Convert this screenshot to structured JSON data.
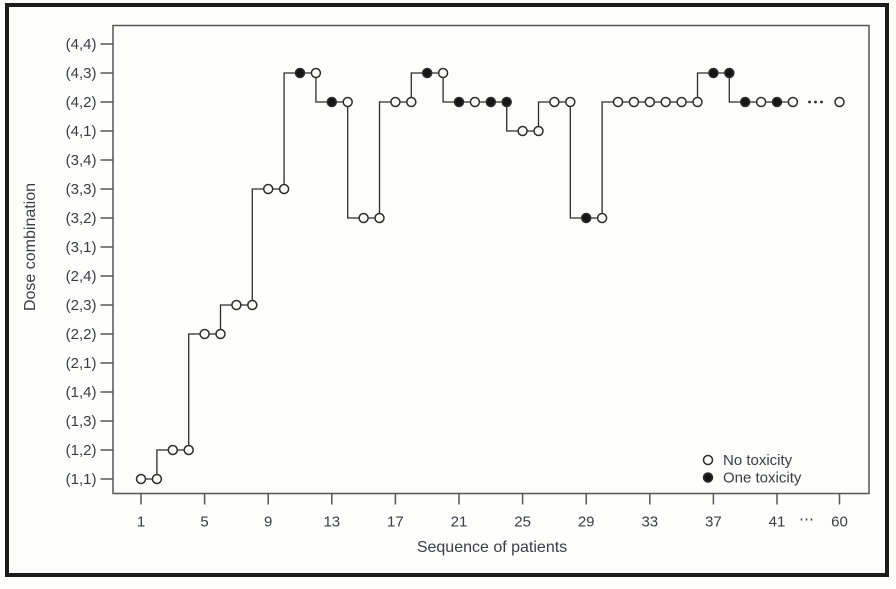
{
  "figure": {
    "description": "Dose-finding trial step plot of assigned dose combination per patient",
    "line_color": "#2d2d2d",
    "border_color": "#555555",
    "text_color": "#3a3d44",
    "background": "#fdfdfc"
  },
  "chart_data": {
    "type": "step-scatter",
    "title": "",
    "xlabel": "Sequence of patients",
    "ylabel": "Dose combination",
    "y_categories": [
      "(1,1)",
      "(1,2)",
      "(1,3)",
      "(1,4)",
      "(2,1)",
      "(2,2)",
      "(2,3)",
      "(2,4)",
      "(3,1)",
      "(3,2)",
      "(3,3)",
      "(3,4)",
      "(4,1)",
      "(4,2)",
      "(4,3)",
      "(4,4)"
    ],
    "x_ticks": [
      1,
      5,
      9,
      13,
      17,
      21,
      25,
      29,
      33,
      37,
      41
    ],
    "x_break_label": "⋯",
    "x_final_tick": 60,
    "legend": [
      {
        "label": "No toxicity",
        "toxicity": false
      },
      {
        "label": "One toxicity",
        "toxicity": true
      }
    ],
    "series": [
      {
        "patient": 1,
        "dose": "(1,1)",
        "toxicity": false
      },
      {
        "patient": 2,
        "dose": "(1,1)",
        "toxicity": false
      },
      {
        "patient": 3,
        "dose": "(1,2)",
        "toxicity": false
      },
      {
        "patient": 4,
        "dose": "(1,2)",
        "toxicity": false
      },
      {
        "patient": 5,
        "dose": "(2,2)",
        "toxicity": false
      },
      {
        "patient": 6,
        "dose": "(2,2)",
        "toxicity": false
      },
      {
        "patient": 7,
        "dose": "(2,3)",
        "toxicity": false
      },
      {
        "patient": 8,
        "dose": "(2,3)",
        "toxicity": false
      },
      {
        "patient": 9,
        "dose": "(3,3)",
        "toxicity": false
      },
      {
        "patient": 10,
        "dose": "(3,3)",
        "toxicity": false
      },
      {
        "patient": 11,
        "dose": "(4,3)",
        "toxicity": true
      },
      {
        "patient": 12,
        "dose": "(4,3)",
        "toxicity": false
      },
      {
        "patient": 13,
        "dose": "(4,2)",
        "toxicity": true
      },
      {
        "patient": 14,
        "dose": "(4,2)",
        "toxicity": false
      },
      {
        "patient": 15,
        "dose": "(3,2)",
        "toxicity": false
      },
      {
        "patient": 16,
        "dose": "(3,2)",
        "toxicity": false
      },
      {
        "patient": 17,
        "dose": "(4,2)",
        "toxicity": false
      },
      {
        "patient": 18,
        "dose": "(4,2)",
        "toxicity": false
      },
      {
        "patient": 19,
        "dose": "(4,3)",
        "toxicity": true
      },
      {
        "patient": 20,
        "dose": "(4,3)",
        "toxicity": false
      },
      {
        "patient": 21,
        "dose": "(4,2)",
        "toxicity": true
      },
      {
        "patient": 22,
        "dose": "(4,2)",
        "toxicity": false
      },
      {
        "patient": 23,
        "dose": "(4,2)",
        "toxicity": true
      },
      {
        "patient": 24,
        "dose": "(4,2)",
        "toxicity": true
      },
      {
        "patient": 25,
        "dose": "(4,1)",
        "toxicity": false
      },
      {
        "patient": 26,
        "dose": "(4,1)",
        "toxicity": false
      },
      {
        "patient": 27,
        "dose": "(4,2)",
        "toxicity": false
      },
      {
        "patient": 28,
        "dose": "(4,2)",
        "toxicity": false
      },
      {
        "patient": 29,
        "dose": "(3,2)",
        "toxicity": true
      },
      {
        "patient": 30,
        "dose": "(3,2)",
        "toxicity": false
      },
      {
        "patient": 31,
        "dose": "(4,2)",
        "toxicity": false
      },
      {
        "patient": 32,
        "dose": "(4,2)",
        "toxicity": false
      },
      {
        "patient": 33,
        "dose": "(4,2)",
        "toxicity": false
      },
      {
        "patient": 34,
        "dose": "(4,2)",
        "toxicity": false
      },
      {
        "patient": 35,
        "dose": "(4,2)",
        "toxicity": false
      },
      {
        "patient": 36,
        "dose": "(4,2)",
        "toxicity": false
      },
      {
        "patient": 37,
        "dose": "(4,3)",
        "toxicity": true
      },
      {
        "patient": 38,
        "dose": "(4,3)",
        "toxicity": true
      },
      {
        "patient": 39,
        "dose": "(4,2)",
        "toxicity": true
      },
      {
        "patient": 40,
        "dose": "(4,2)",
        "toxicity": false
      },
      {
        "patient": 41,
        "dose": "(4,2)",
        "toxicity": true
      },
      {
        "patient": 42,
        "dose": "(4,2)",
        "toxicity": false
      }
    ],
    "extra_point_after_break": {
      "patient": 60,
      "dose": "(4,2)",
      "toxicity": false
    },
    "axis_break_dots_on_line": 3,
    "layout": {
      "grid": false,
      "legend_position": "inside-bottom-right"
    }
  }
}
